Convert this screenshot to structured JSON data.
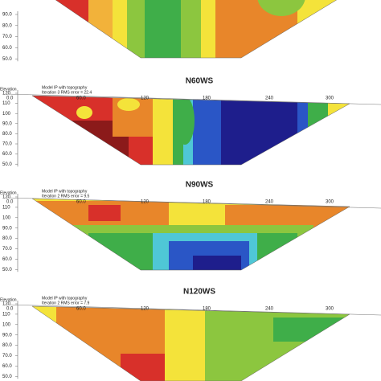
{
  "panels": [
    {
      "y_ticks": [
        "90.0",
        "80.0",
        "70.0",
        "60.0",
        "50.0"
      ]
    },
    {
      "title": "N60WS",
      "elevation_label": "Elevation",
      "model_label": "Model IP with topography",
      "iteration_label": "Iteration 3 RMS error = 22.4",
      "x_ticks": [
        "0.0",
        "60.0",
        "120",
        "180",
        "240",
        "300"
      ],
      "y_ticks": [
        "120",
        "110",
        "100",
        "90.0",
        "80.0",
        "70.0",
        "60.0",
        "50.0"
      ]
    },
    {
      "title": "N90WS",
      "elevation_label": "Elevation",
      "model_label": "Model IP with topography",
      "iteration_label": "Iteration 2 RMS error = 9.5",
      "x_ticks": [
        "0.0",
        "60.0",
        "120",
        "180",
        "240",
        "300"
      ],
      "y_ticks": [
        "120",
        "110",
        "100",
        "90.0",
        "80.0",
        "70.0",
        "60.0",
        "50.0"
      ]
    },
    {
      "title": "N120WS",
      "elevation_label": "Elevation",
      "model_label": "Model IP with topography",
      "iteration_label": "Iteration 2 RMS error = 7.9",
      "x_ticks": [
        "0.0",
        "60.0",
        "120",
        "180",
        "240",
        "300"
      ],
      "y_ticks": [
        "120",
        "110",
        "100",
        "90.0",
        "80.0",
        "70.0",
        "60.0",
        "50.0"
      ]
    }
  ]
}
